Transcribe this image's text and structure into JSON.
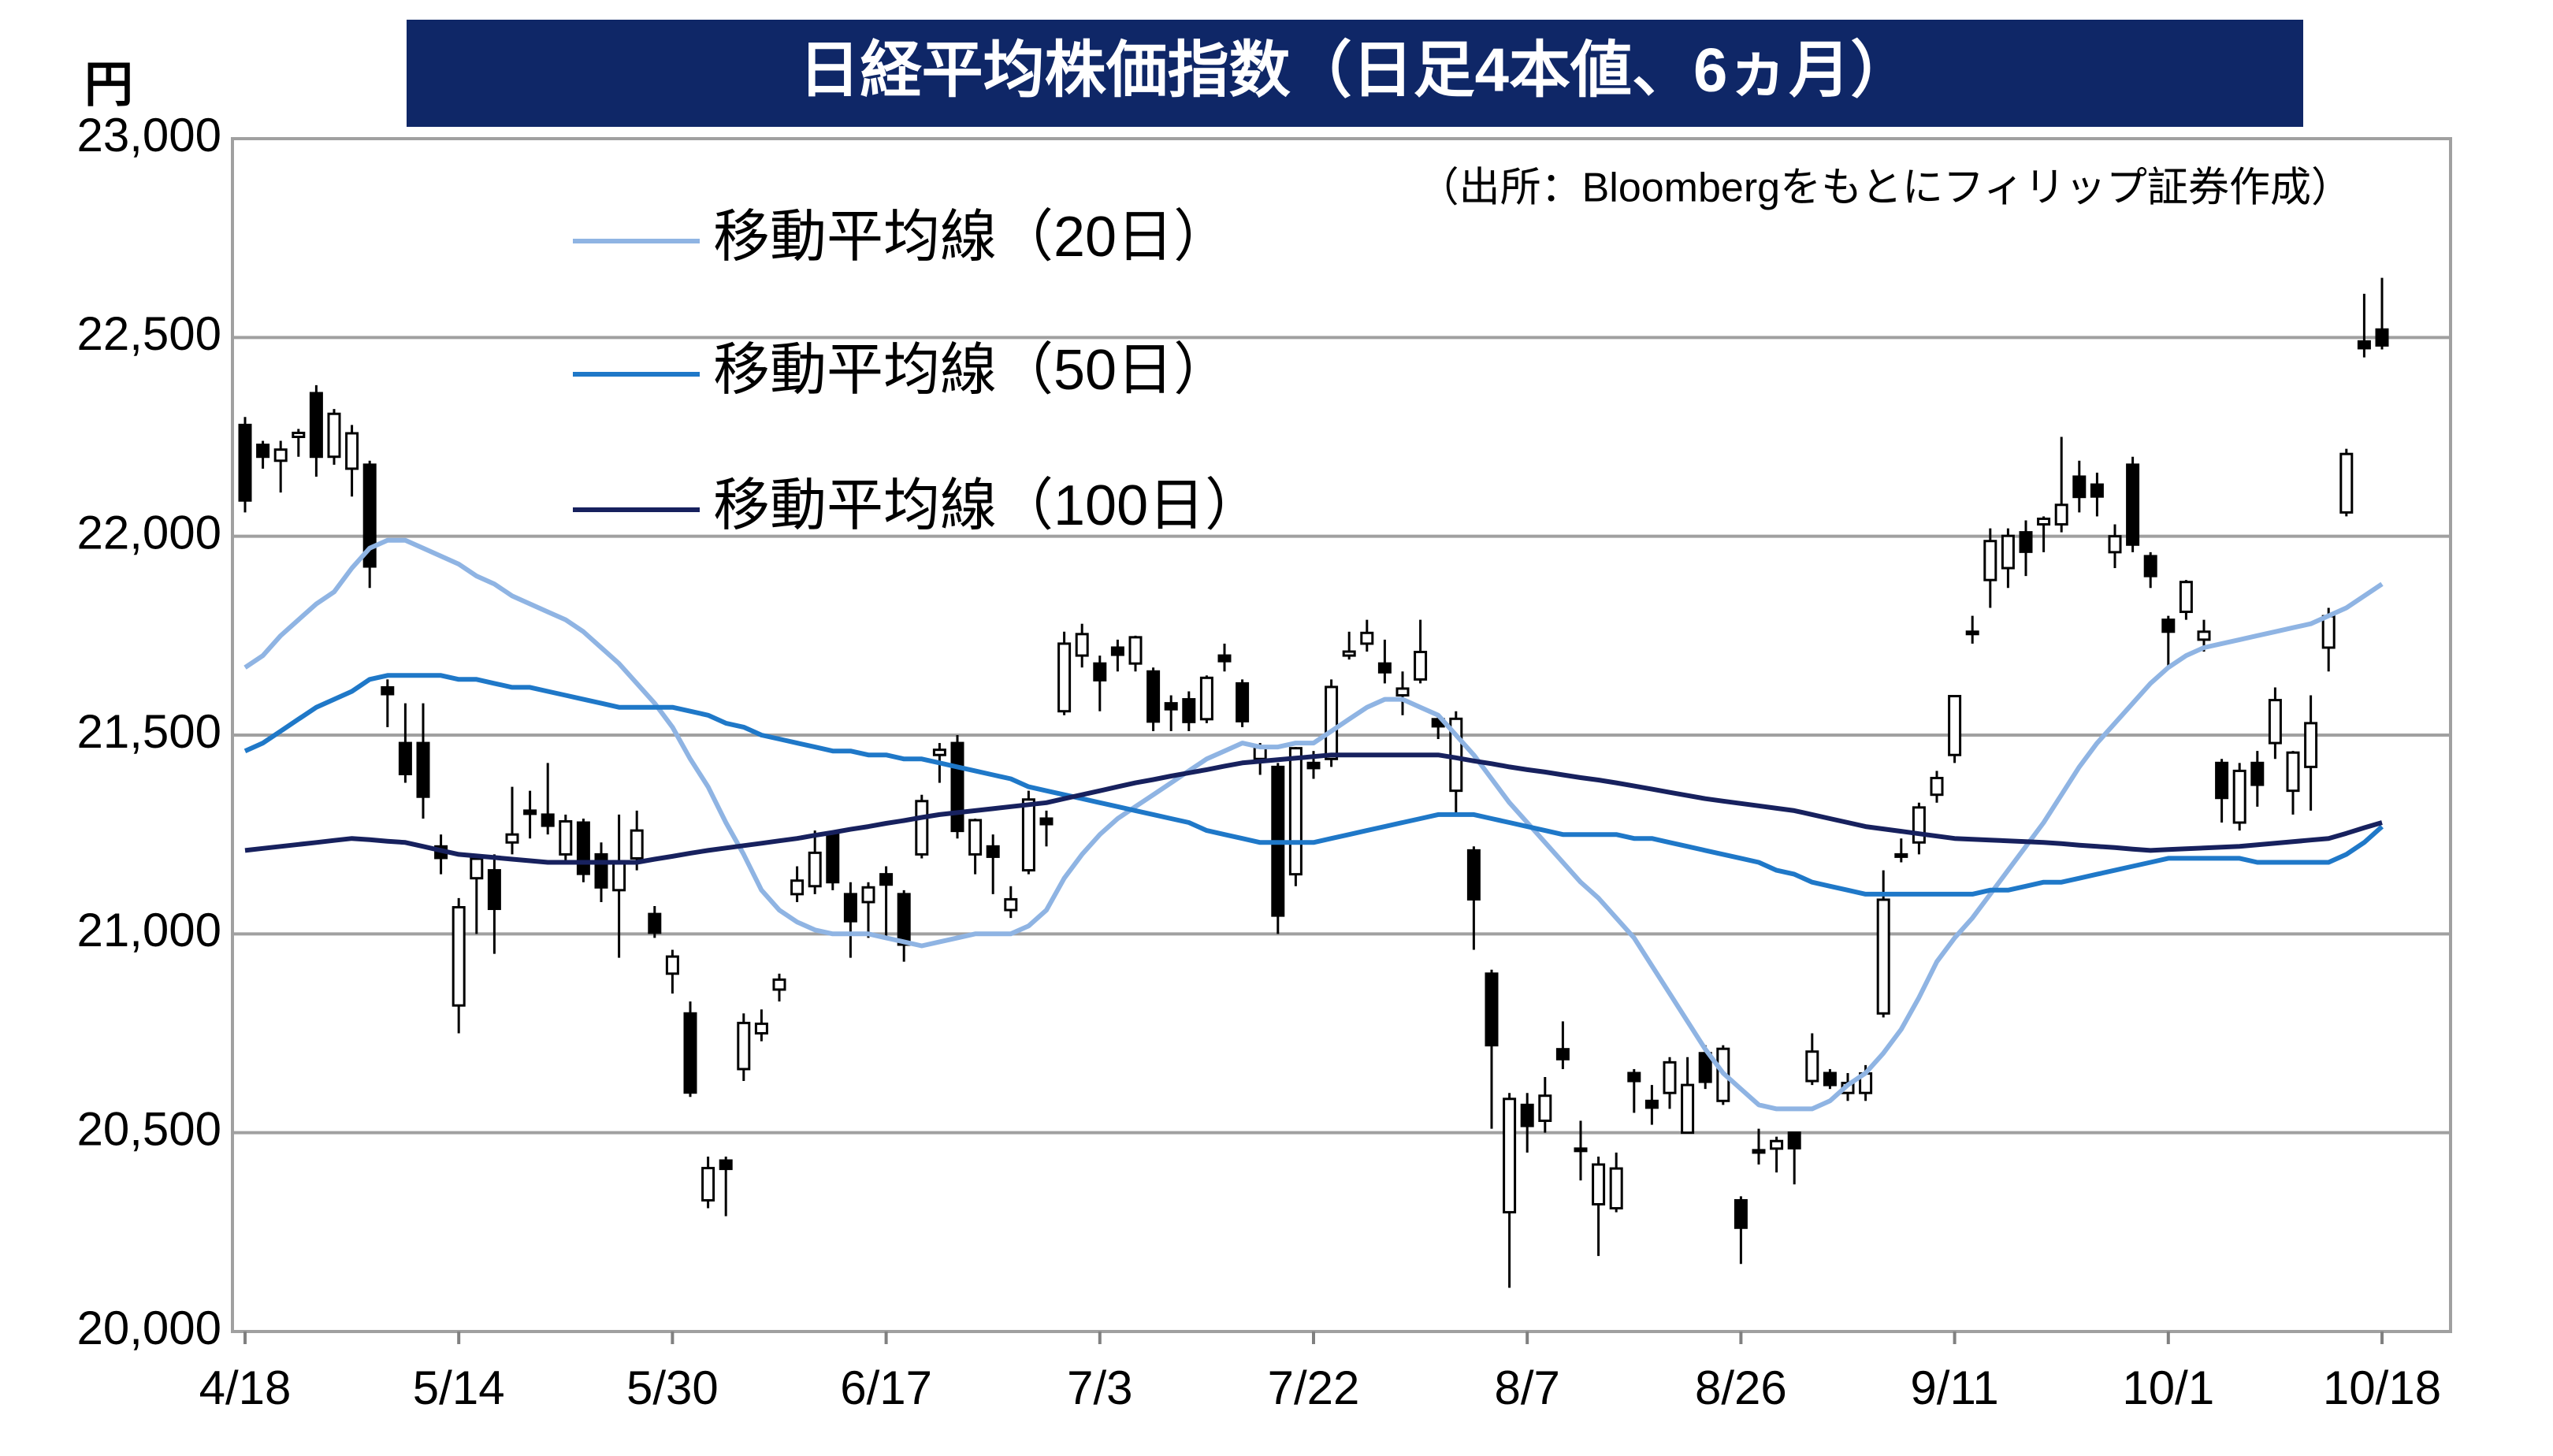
{
  "chart_data": {
    "type": "candlestick",
    "title": "日経平均株価指数（日足4本値、6ヵ月）",
    "source": "（出所：Bloombergをもとにフィリップ証券作成）",
    "y_unit": "円",
    "categories": [
      "4/18",
      null,
      null,
      null,
      null,
      null,
      null,
      null,
      null,
      null,
      null,
      null,
      "5/14",
      null,
      null,
      null,
      null,
      null,
      null,
      null,
      null,
      null,
      null,
      null,
      "5/30",
      null,
      null,
      null,
      null,
      null,
      null,
      null,
      null,
      null,
      null,
      null,
      "6/17",
      null,
      null,
      null,
      null,
      null,
      null,
      null,
      null,
      null,
      null,
      null,
      "7/3",
      null,
      null,
      null,
      null,
      null,
      null,
      null,
      null,
      null,
      null,
      null,
      "7/22",
      null,
      null,
      null,
      null,
      null,
      null,
      null,
      null,
      null,
      null,
      null,
      "8/7",
      null,
      null,
      null,
      null,
      null,
      null,
      null,
      null,
      null,
      null,
      null,
      "8/26",
      null,
      null,
      null,
      null,
      null,
      null,
      null,
      null,
      null,
      null,
      null,
      "9/11",
      null,
      null,
      null,
      null,
      null,
      null,
      null,
      null,
      null,
      null,
      null,
      "10/1",
      null,
      null,
      null,
      null,
      null,
      null,
      null,
      null,
      null,
      null,
      null,
      "10/18"
    ],
    "open": [
      22280,
      22230,
      22190,
      22250,
      22360,
      22200,
      22170,
      22180,
      21620,
      21480,
      21480,
      21220,
      20820,
      21140,
      21160,
      21230,
      21310,
      21300,
      21200,
      21280,
      21200,
      21110,
      21190,
      21050,
      20900,
      20800,
      20330,
      20430,
      20660,
      20750,
      20860,
      21100,
      21120,
      21250,
      21100,
      21080,
      21150,
      21100,
      21200,
      21450,
      21480,
      21200,
      21220,
      21060,
      21160,
      21290,
      21560,
      21700,
      21680,
      21720,
      21680,
      21660,
      21580,
      21590,
      21540,
      21700,
      21630,
      21440,
      21420,
      21150,
      21430,
      21440,
      21700,
      21730,
      21680,
      21600,
      21640,
      21540,
      21360,
      21210,
      20900,
      20300,
      20570,
      20530,
      20710,
      20460,
      20320,
      20310,
      20650,
      20580,
      20600,
      20500,
      20700,
      20580,
      20330,
      20450,
      20460,
      20500,
      20630,
      20650,
      20600,
      20600,
      20800,
      21200,
      21230,
      21350,
      21450,
      21760,
      21890,
      21920,
      22010,
      22030,
      22030,
      22150,
      22130,
      21960,
      22180,
      21950,
      21790,
      21810,
      21740,
      21430,
      21280,
      21430,
      21480,
      21360,
      21420,
      21720,
      22060,
      22490,
      22520
    ],
    "high": [
      22300,
      22240,
      22240,
      22270,
      22380,
      22320,
      22280,
      22190,
      21640,
      21580,
      21580,
      21250,
      21090,
      21190,
      21200,
      21370,
      21360,
      21430,
      21300,
      21290,
      21230,
      21300,
      21310,
      21070,
      20960,
      20830,
      20440,
      20440,
      20800,
      20810,
      20900,
      21170,
      21260,
      21260,
      21130,
      21130,
      21170,
      21110,
      21350,
      21480,
      21500,
      21290,
      21250,
      21120,
      21360,
      21310,
      21760,
      21780,
      21700,
      21740,
      21750,
      21670,
      21600,
      21610,
      21650,
      21730,
      21640,
      21480,
      21430,
      21470,
      21460,
      21640,
      21760,
      21790,
      21740,
      21660,
      21790,
      21550,
      21560,
      21220,
      20910,
      20600,
      20600,
      20640,
      20780,
      20530,
      20440,
      20450,
      20660,
      20620,
      20690,
      20690,
      20720,
      20720,
      20340,
      20510,
      20490,
      20500,
      20750,
      20660,
      20650,
      20670,
      21160,
      21240,
      21330,
      21410,
      21600,
      21800,
      22020,
      22020,
      22040,
      22050,
      22250,
      22190,
      22160,
      22030,
      22200,
      21960,
      21800,
      21890,
      21790,
      21440,
      21430,
      21460,
      21620,
      21460,
      21600,
      21820,
      22220,
      22610,
      22650
    ],
    "low": [
      22060,
      22170,
      22110,
      22200,
      22150,
      22180,
      22100,
      21870,
      21520,
      21380,
      21290,
      21150,
      20750,
      21000,
      20950,
      21200,
      21240,
      21250,
      21180,
      21130,
      21080,
      20940,
      21160,
      20990,
      20850,
      20590,
      20310,
      20290,
      20630,
      20730,
      20830,
      21080,
      21100,
      21110,
      20940,
      20990,
      20990,
      20930,
      21190,
      21380,
      21240,
      21150,
      21100,
      21040,
      21150,
      21220,
      21550,
      21670,
      21560,
      21660,
      21660,
      21510,
      21510,
      21510,
      21530,
      21660,
      21520,
      21400,
      21000,
      21120,
      21390,
      21420,
      21690,
      21710,
      21630,
      21550,
      21630,
      21490,
      21300,
      20960,
      20510,
      20110,
      20450,
      20500,
      20660,
      20380,
      20190,
      20300,
      20550,
      20520,
      20560,
      20500,
      20610,
      20570,
      20170,
      20420,
      20400,
      20370,
      20620,
      20610,
      20580,
      20580,
      20790,
      21180,
      21200,
      21330,
      21430,
      21730,
      21820,
      21870,
      21900,
      21960,
      22010,
      22060,
      22050,
      21920,
      21960,
      21870,
      21670,
      21790,
      21710,
      21280,
      21260,
      21320,
      21440,
      21300,
      21310,
      21660,
      22050,
      22450,
      22470
    ],
    "close": [
      22090,
      22200,
      22218,
      22260,
      22200,
      22308,
      22259,
      21924,
      21603,
      21402,
      21345,
      21191,
      21067,
      21189,
      21063,
      21250,
      21302,
      21272,
      21283,
      21151,
      21117,
      21183,
      21260,
      21003,
      20943,
      20601,
      20411,
      20409,
      20776,
      20774,
      20885,
      21134,
      21204,
      21130,
      21032,
      21117,
      21124,
      20973,
      21334,
      21463,
      21259,
      21286,
      21194,
      21087,
      21338,
      21276,
      21730,
      21754,
      21638,
      21702,
      21746,
      21534,
      21565,
      21533,
      21644,
      21686,
      21535,
      21469,
      21046,
      21467,
      21417,
      21621,
      21710,
      21757,
      21658,
      21617,
      21709,
      21522,
      21541,
      21087,
      20720,
      20585,
      20517,
      20593,
      20685,
      20455,
      20420,
      20410,
      20630,
      20563,
      20677,
      20620,
      20628,
      20711,
      20261,
      20456,
      20479,
      20461,
      20704,
      20620,
      20625,
      20649,
      21086,
      21200,
      21318,
      21392,
      21598,
      21760,
      21988,
      22001,
      21961,
      22044,
      22079,
      22099,
      22100,
      22000,
      21979,
      21900,
      21760,
      21885,
      21760,
      21342,
      21410,
      21375,
      21588,
      21456,
      21530,
      21799,
      22207,
      22473,
      22480
    ],
    "up_color": "#ffffff",
    "down_color": "#000000",
    "series": [
      {
        "name": "移動平均線（20日）",
        "color": "#8fb4e3",
        "values": [
          21670,
          21700,
          21750,
          21790,
          21830,
          21860,
          21920,
          21970,
          21990,
          21990,
          21970,
          21950,
          21930,
          21900,
          21880,
          21850,
          21830,
          21810,
          21790,
          21760,
          21720,
          21680,
          21630,
          21580,
          21520,
          21440,
          21370,
          21280,
          21200,
          21110,
          21060,
          21030,
          21010,
          21000,
          21000,
          21000,
          20990,
          20980,
          20970,
          20980,
          20990,
          21000,
          21000,
          21000,
          21020,
          21060,
          21140,
          21200,
          21250,
          21290,
          21320,
          21350,
          21380,
          21410,
          21440,
          21460,
          21480,
          21470,
          21470,
          21480,
          21480,
          21510,
          21540,
          21570,
          21590,
          21590,
          21570,
          21550,
          21500,
          21450,
          21390,
          21330,
          21280,
          21230,
          21180,
          21130,
          21090,
          21040,
          20990,
          20920,
          20850,
          20780,
          20710,
          20650,
          20610,
          20570,
          20560,
          20560,
          20560,
          20580,
          20620,
          20650,
          20700,
          20760,
          20840,
          20930,
          20990,
          21040,
          21100,
          21160,
          21220,
          21280,
          21350,
          21420,
          21480,
          21530,
          21580,
          21630,
          21670,
          21700,
          21720,
          21730,
          21740,
          21750,
          21760,
          21770,
          21780,
          21800,
          21820,
          21850,
          21880
        ]
      },
      {
        "name": "移動平均線（50日）",
        "color": "#1f78c8",
        "values": [
          21460,
          21480,
          21510,
          21540,
          21570,
          21590,
          21610,
          21640,
          21650,
          21650,
          21650,
          21650,
          21640,
          21640,
          21630,
          21620,
          21620,
          21610,
          21600,
          21590,
          21580,
          21570,
          21570,
          21570,
          21570,
          21560,
          21550,
          21530,
          21520,
          21500,
          21490,
          21480,
          21470,
          21460,
          21460,
          21450,
          21450,
          21440,
          21440,
          21430,
          21420,
          21410,
          21400,
          21390,
          21370,
          21360,
          21350,
          21340,
          21330,
          21320,
          21310,
          21300,
          21290,
          21280,
          21260,
          21250,
          21240,
          21230,
          21230,
          21230,
          21230,
          21240,
          21250,
          21260,
          21270,
          21280,
          21290,
          21300,
          21300,
          21300,
          21290,
          21280,
          21270,
          21260,
          21250,
          21250,
          21250,
          21250,
          21240,
          21240,
          21230,
          21220,
          21210,
          21200,
          21190,
          21180,
          21160,
          21150,
          21130,
          21120,
          21110,
          21100,
          21100,
          21100,
          21100,
          21100,
          21100,
          21100,
          21110,
          21110,
          21120,
          21130,
          21130,
          21140,
          21150,
          21160,
          21170,
          21180,
          21190,
          21190,
          21190,
          21190,
          21190,
          21180,
          21180,
          21180,
          21180,
          21180,
          21200,
          21230,
          21270
        ]
      },
      {
        "name": "移動平均線（100日）",
        "color": "#17215e",
        "values": [
          21210,
          21215,
          21220,
          21225,
          21230,
          21235,
          21240,
          21237,
          21233,
          21230,
          21220,
          21210,
          21200,
          21196,
          21192,
          21188,
          21184,
          21180,
          21180,
          21180,
          21180,
          21180,
          21180,
          21188,
          21195,
          21203,
          21210,
          21216,
          21222,
          21228,
          21234,
          21240,
          21248,
          21255,
          21263,
          21270,
          21278,
          21285,
          21293,
          21300,
          21305,
          21310,
          21315,
          21320,
          21325,
          21330,
          21340,
          21350,
          21360,
          21370,
          21380,
          21388,
          21397,
          21405,
          21413,
          21422,
          21430,
          21434,
          21438,
          21442,
          21446,
          21450,
          21450,
          21450,
          21450,
          21450,
          21450,
          21450,
          21443,
          21435,
          21428,
          21420,
          21413,
          21407,
          21400,
          21393,
          21387,
          21380,
          21372,
          21364,
          21356,
          21348,
          21340,
          21334,
          21328,
          21322,
          21316,
          21310,
          21300,
          21290,
          21280,
          21270,
          21264,
          21258,
          21252,
          21246,
          21240,
          21238,
          21236,
          21234,
          21232,
          21230,
          21227,
          21223,
          21220,
          21217,
          21213,
          21210,
          21212,
          21214,
          21216,
          21218,
          21220,
          21224,
          21228,
          21232,
          21236,
          21240,
          21253,
          21267,
          21280
        ]
      }
    ],
    "ylim": [
      20000,
      23000
    ],
    "yticks": [
      {
        "value": 20000,
        "label": "20,000"
      },
      {
        "value": 20500,
        "label": "20,500"
      },
      {
        "value": 21000,
        "label": "21,000"
      },
      {
        "value": 21500,
        "label": "21,500"
      },
      {
        "value": 22000,
        "label": "22,000"
      },
      {
        "value": 22500,
        "label": "22,500"
      },
      {
        "value": 23000,
        "label": "23,000"
      }
    ],
    "grid": true
  }
}
